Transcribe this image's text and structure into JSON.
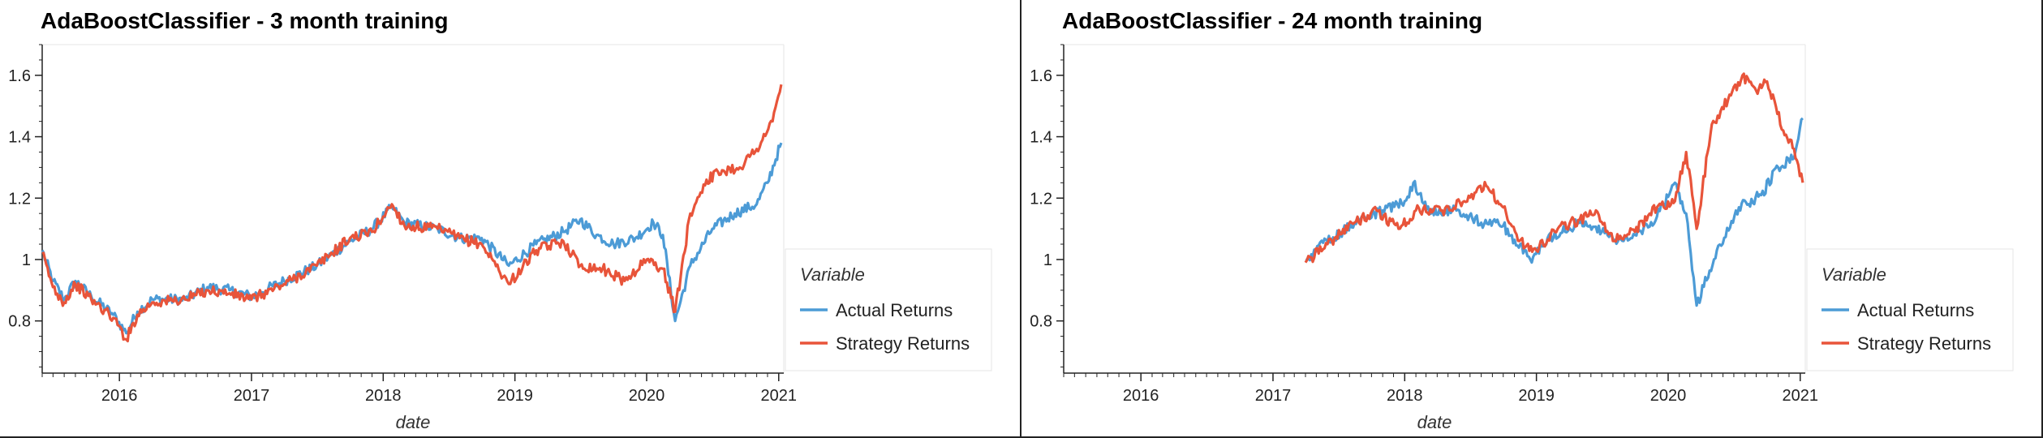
{
  "chart_data": [
    {
      "type": "line",
      "title": "AdaBoostClassifier - 3 month training",
      "xlabel": "date",
      "ylabel": "",
      "xlim": [
        "2015-06-01",
        "2021-01-15"
      ],
      "ylim": [
        0.63,
        1.7
      ],
      "x_ticks": [
        "2016",
        "2017",
        "2018",
        "2019",
        "2020",
        "2021"
      ],
      "y_ticks": [
        "0.8",
        "1",
        "1.2",
        "1.4",
        "1.6"
      ],
      "legend": {
        "title": "Variable",
        "position": "right"
      },
      "series": [
        {
          "name": "Actual Returns",
          "color": "#4c9bd6",
          "points": [
            [
              "2015-06-01",
              1.03
            ],
            [
              "2015-07-01",
              0.93
            ],
            [
              "2015-08-01",
              0.87
            ],
            [
              "2015-09-01",
              0.93
            ],
            [
              "2015-10-15",
              0.88
            ],
            [
              "2015-12-15",
              0.82
            ],
            [
              "2016-01-20",
              0.76
            ],
            [
              "2016-02-20",
              0.83
            ],
            [
              "2016-04-01",
              0.87
            ],
            [
              "2016-07-01",
              0.87
            ],
            [
              "2016-09-01",
              0.91
            ],
            [
              "2016-11-01",
              0.9
            ],
            [
              "2017-01-01",
              0.88
            ],
            [
              "2017-04-01",
              0.93
            ],
            [
              "2017-07-01",
              0.98
            ],
            [
              "2017-10-01",
              1.06
            ],
            [
              "2017-12-01",
              1.1
            ],
            [
              "2018-01-25",
              1.17
            ],
            [
              "2018-03-01",
              1.12
            ],
            [
              "2018-06-01",
              1.1
            ],
            [
              "2018-08-01",
              1.07
            ],
            [
              "2018-10-01",
              1.07
            ],
            [
              "2018-12-15",
              0.98
            ],
            [
              "2019-03-01",
              1.05
            ],
            [
              "2019-05-15",
              1.09
            ],
            [
              "2019-07-01",
              1.13
            ],
            [
              "2019-08-15",
              1.08
            ],
            [
              "2019-10-01",
              1.05
            ],
            [
              "2019-12-01",
              1.07
            ],
            [
              "2020-01-20",
              1.12
            ],
            [
              "2020-02-15",
              1.08
            ],
            [
              "2020-03-20",
              0.8
            ],
            [
              "2020-05-01",
              0.98
            ],
            [
              "2020-07-01",
              1.1
            ],
            [
              "2020-09-01",
              1.15
            ],
            [
              "2020-11-01",
              1.18
            ],
            [
              "2020-12-01",
              1.25
            ],
            [
              "2021-01-08",
              1.38
            ]
          ]
        },
        {
          "name": "Strategy Returns",
          "color": "#e8543a",
          "points": [
            [
              "2015-06-01",
              1.02
            ],
            [
              "2015-07-01",
              0.91
            ],
            [
              "2015-08-01",
              0.86
            ],
            [
              "2015-09-01",
              0.92
            ],
            [
              "2015-10-15",
              0.87
            ],
            [
              "2015-12-15",
              0.81
            ],
            [
              "2016-01-20",
              0.74
            ],
            [
              "2016-02-20",
              0.82
            ],
            [
              "2016-04-01",
              0.86
            ],
            [
              "2016-07-01",
              0.87
            ],
            [
              "2016-09-01",
              0.9
            ],
            [
              "2016-11-01",
              0.89
            ],
            [
              "2017-01-01",
              0.87
            ],
            [
              "2017-04-01",
              0.92
            ],
            [
              "2017-07-01",
              0.98
            ],
            [
              "2017-10-01",
              1.07
            ],
            [
              "2017-12-01",
              1.09
            ],
            [
              "2018-01-25",
              1.18
            ],
            [
              "2018-03-01",
              1.11
            ],
            [
              "2018-06-01",
              1.1
            ],
            [
              "2018-08-01",
              1.07
            ],
            [
              "2018-10-01",
              1.05
            ],
            [
              "2018-12-15",
              0.92
            ],
            [
              "2019-03-01",
              1.03
            ],
            [
              "2019-05-15",
              1.06
            ],
            [
              "2019-07-01",
              0.98
            ],
            [
              "2019-09-01",
              0.97
            ],
            [
              "2019-11-01",
              0.93
            ],
            [
              "2020-01-01",
              1.0
            ],
            [
              "2020-02-15",
              0.97
            ],
            [
              "2020-03-20",
              0.83
            ],
            [
              "2020-05-01",
              1.15
            ],
            [
              "2020-06-15",
              1.26
            ],
            [
              "2020-08-01",
              1.29
            ],
            [
              "2020-09-15",
              1.3
            ],
            [
              "2020-11-01",
              1.36
            ],
            [
              "2020-12-15",
              1.45
            ],
            [
              "2021-01-08",
              1.57
            ]
          ]
        }
      ]
    },
    {
      "type": "line",
      "title": "AdaBoostClassifier - 24 month training",
      "xlabel": "date",
      "ylabel": "",
      "xlim": [
        "2015-06-01",
        "2021-01-15"
      ],
      "ylim": [
        0.63,
        1.7
      ],
      "x_ticks": [
        "2016",
        "2017",
        "2018",
        "2019",
        "2020",
        "2021"
      ],
      "y_ticks": [
        "0.8",
        "1",
        "1.2",
        "1.4",
        "1.6"
      ],
      "legend": {
        "title": "Variable",
        "position": "right"
      },
      "series": [
        {
          "name": "Actual Returns",
          "color": "#4c9bd6",
          "points": [
            [
              "2017-04-01",
              1.0
            ],
            [
              "2017-06-01",
              1.06
            ],
            [
              "2017-08-15",
              1.12
            ],
            [
              "2017-11-01",
              1.16
            ],
            [
              "2018-01-01",
              1.19
            ],
            [
              "2018-01-25",
              1.25
            ],
            [
              "2018-03-15",
              1.15
            ],
            [
              "2018-06-01",
              1.16
            ],
            [
              "2018-08-01",
              1.12
            ],
            [
              "2018-10-01",
              1.11
            ],
            [
              "2018-12-15",
              1.0
            ],
            [
              "2019-02-01",
              1.07
            ],
            [
              "2019-05-01",
              1.12
            ],
            [
              "2019-07-01",
              1.09
            ],
            [
              "2019-08-15",
              1.06
            ],
            [
              "2019-10-01",
              1.08
            ],
            [
              "2019-12-01",
              1.14
            ],
            [
              "2020-01-20",
              1.25
            ],
            [
              "2020-02-20",
              1.15
            ],
            [
              "2020-03-20",
              0.85
            ],
            [
              "2020-05-15",
              1.03
            ],
            [
              "2020-07-15",
              1.17
            ],
            [
              "2020-09-15",
              1.21
            ],
            [
              "2020-11-01",
              1.3
            ],
            [
              "2020-12-15",
              1.33
            ],
            [
              "2021-01-08",
              1.46
            ]
          ]
        },
        {
          "name": "Strategy Returns",
          "color": "#e8543a",
          "points": [
            [
              "2017-04-01",
              0.99
            ],
            [
              "2017-06-01",
              1.05
            ],
            [
              "2017-08-15",
              1.12
            ],
            [
              "2017-10-15",
              1.16
            ],
            [
              "2017-12-15",
              1.1
            ],
            [
              "2018-02-01",
              1.16
            ],
            [
              "2018-04-15",
              1.16
            ],
            [
              "2018-06-15",
              1.19
            ],
            [
              "2018-08-15",
              1.24
            ],
            [
              "2018-10-01",
              1.17
            ],
            [
              "2018-11-15",
              1.06
            ],
            [
              "2019-01-01",
              1.03
            ],
            [
              "2019-03-01",
              1.1
            ],
            [
              "2019-05-01",
              1.13
            ],
            [
              "2019-06-15",
              1.16
            ],
            [
              "2019-08-01",
              1.06
            ],
            [
              "2019-10-01",
              1.09
            ],
            [
              "2019-12-01",
              1.17
            ],
            [
              "2020-01-20",
              1.19
            ],
            [
              "2020-02-20",
              1.35
            ],
            [
              "2020-03-20",
              1.1
            ],
            [
              "2020-05-01",
              1.44
            ],
            [
              "2020-06-15",
              1.52
            ],
            [
              "2020-07-25",
              1.6
            ],
            [
              "2020-09-01",
              1.55
            ],
            [
              "2020-10-01",
              1.58
            ],
            [
              "2020-11-15",
              1.42
            ],
            [
              "2020-12-15",
              1.36
            ],
            [
              "2021-01-08",
              1.25
            ]
          ]
        }
      ]
    }
  ]
}
